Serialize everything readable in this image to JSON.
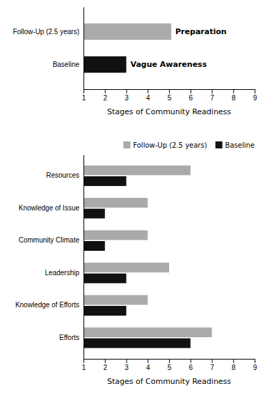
{
  "chart_data": [
    {
      "type": "bar",
      "orientation": "horizontal",
      "categories": [
        "Follow-Up (2.5 years)",
        "Baseline"
      ],
      "values": [
        5.1,
        3.0
      ],
      "colors": [
        "#aaaaaa",
        "#111111"
      ],
      "annotations": [
        "Preparation",
        "Vague Awareness"
      ],
      "xlabel": "Stages of Community Readiness",
      "xlim": [
        1,
        9
      ],
      "xticks": [
        1,
        2,
        3,
        4,
        5,
        6,
        7,
        8,
        9
      ]
    },
    {
      "type": "bar",
      "orientation": "horizontal",
      "categories": [
        "Efforts",
        "Knowledge of Efforts",
        "Leadership",
        "Community Climate",
        "Knowledge of Issue",
        "Resources"
      ],
      "series": [
        {
          "name": "Follow-Up (2.5 years)",
          "color": "#aaaaaa",
          "values": [
            7.0,
            4.0,
            5.0,
            4.0,
            4.0,
            6.0
          ]
        },
        {
          "name": "Baseline",
          "color": "#111111",
          "values": [
            6.0,
            3.0,
            3.0,
            2.0,
            2.0,
            3.0
          ]
        }
      ],
      "xlabel": "Stages of Community Readiness",
      "xlim": [
        1,
        9
      ],
      "xticks": [
        1,
        2,
        3,
        4,
        5,
        6,
        7,
        8,
        9
      ],
      "legend": "upper right"
    }
  ]
}
